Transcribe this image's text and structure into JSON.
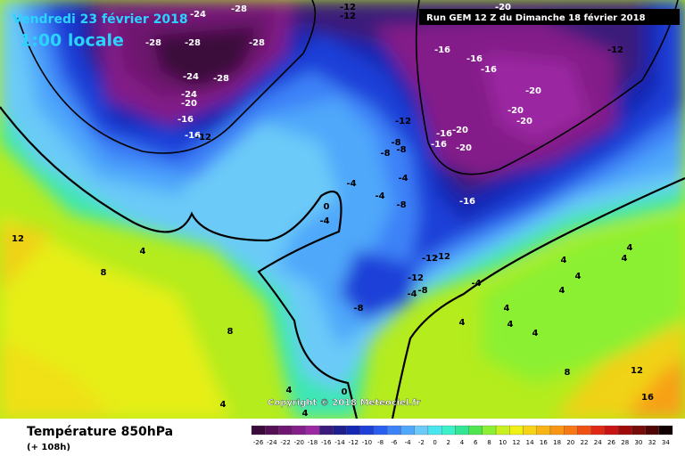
{
  "map": {
    "date": "Vendredi 23 février 2018",
    "time": "1:00 locale",
    "run": "Run GEM 12 Z du Dimanche 18 février 2018",
    "copyright": "Copyright © 2018 Meteociel.fr",
    "legend": {
      "title": "Température 850hPa",
      "subtitle": "(+ 108h)",
      "ticks": [
        -26,
        -24,
        -22,
        -20,
        -18,
        -16,
        -14,
        -12,
        -10,
        -8,
        -6,
        -4,
        -2,
        0,
        2,
        4,
        6,
        8,
        10,
        12,
        14,
        16,
        18,
        20,
        22,
        24,
        26,
        28,
        30,
        32,
        34
      ],
      "colors": [
        "#3a0a3a",
        "#550f55",
        "#6e1670",
        "#831f88",
        "#9b28a2",
        "#3a1a7a",
        "#1e1e8c",
        "#1428b4",
        "#1e40d8",
        "#2a5ef0",
        "#3c82f8",
        "#50a8fa",
        "#6ccaf8",
        "#4ae6f0",
        "#3cf0c8",
        "#32e696",
        "#50e650",
        "#8cf032",
        "#c8f01e",
        "#f0f014",
        "#f8d214",
        "#f8b414",
        "#f89614",
        "#f87814",
        "#f05014",
        "#e02814",
        "#c81414",
        "#a00a0a",
        "#780a0a",
        "#500505",
        "#100000"
      ]
    },
    "labels": [
      -24,
      -28,
      -28,
      -28,
      -28,
      -24,
      -28,
      -24,
      -20,
      -16,
      -16,
      -12,
      -12,
      -12,
      -16,
      -16,
      -16,
      -12,
      -20,
      -20,
      -20,
      -12,
      -16,
      -20,
      -16,
      -20,
      -8,
      -8,
      -8,
      -4,
      -4,
      -8,
      -4,
      -16,
      0,
      -4,
      -12,
      -12,
      -12,
      -4,
      -8,
      -4,
      -8,
      12,
      4,
      8,
      8,
      4,
      4,
      4,
      4,
      4,
      4,
      4,
      4,
      4,
      8,
      12,
      16,
      4,
      0,
      4,
      4,
      -20
    ]
  }
}
